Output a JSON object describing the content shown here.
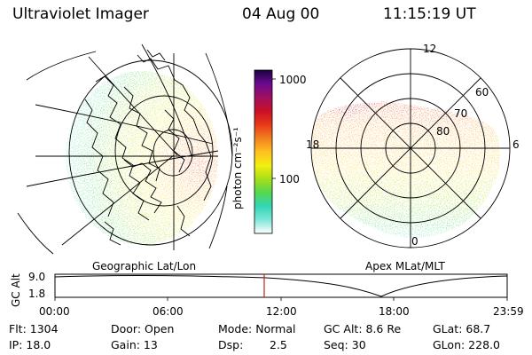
{
  "header": {
    "instrument": "Ultraviolet Imager",
    "date": "04 Aug 00",
    "time": "11:15:19 UT"
  },
  "colorbar": {
    "unit_label": "photon cm⁻²s⁻¹",
    "ticks": [
      "1000",
      "100"
    ],
    "stops": [
      "#ffffff",
      "#7fe6d9",
      "#32d6b4",
      "#56d650",
      "#a6df18",
      "#f2ee10",
      "#ffbf20",
      "#f08020",
      "#e83818",
      "#c81028",
      "#a01060",
      "#6a0a90",
      "#1a0040"
    ]
  },
  "left_panel": {
    "caption": "Geographic Lat/Lon"
  },
  "right_panel": {
    "caption": "Apex MLat/MLT",
    "mlt_labels": [
      "12",
      "18",
      "6",
      "0"
    ],
    "lat_labels": [
      "60",
      "70",
      "80"
    ]
  },
  "altitude_panel": {
    "ylabel": "GC Alt",
    "yticks": [
      "9.0",
      "1.8"
    ],
    "xticks": [
      "00:00",
      "06:00",
      "12:00",
      "18:00",
      "23:59"
    ],
    "current_time_marker_color": "#c02020"
  },
  "info": {
    "flt": "Flt: 1304",
    "ip": "IP: 18.0",
    "door": "Door: Open",
    "gain": "Gain: 13",
    "mode": "Mode: Normal",
    "dsp_label": "Dsp:",
    "dsp_value": "2.5",
    "gcalt": "GC Alt: 8.6 Re",
    "seq": "Seq: 30",
    "glat": "GLat:  68.7",
    "glon": "GLon: 228.0"
  }
}
